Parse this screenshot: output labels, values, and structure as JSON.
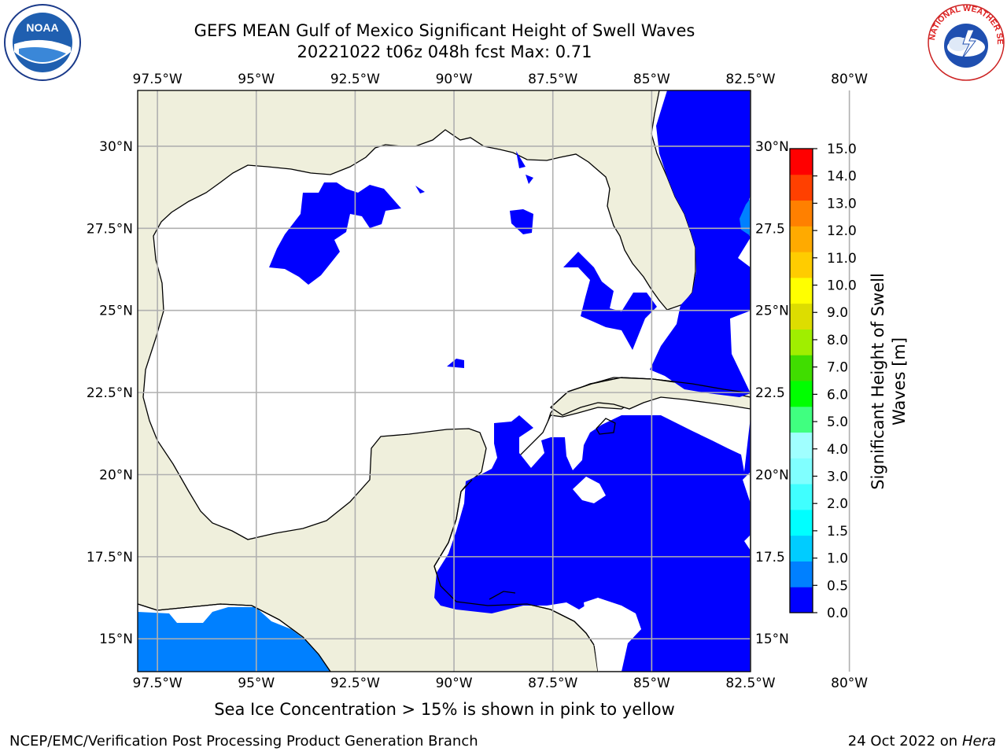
{
  "title": {
    "line1": "GEFS MEAN Gulf of Mexico Significant Height of Swell Waves",
    "line2": "20221022 t06z 048h fcst   Max: 0.71"
  },
  "map": {
    "lon_range": [
      -98.0,
      -82.5
    ],
    "lat_range": [
      14.0,
      31.7
    ],
    "lon_ticks": [
      "97.5°W",
      "95°W",
      "92.5°W",
      "90°W",
      "87.5°W",
      "85°W",
      "82.5°W",
      "80°W"
    ],
    "lat_ticks_left": [
      "30°N",
      "27.5°N",
      "25°N",
      "22.5°N",
      "20°N",
      "17.5°N",
      "15°N"
    ],
    "lat_ticks_right": [
      "30°N",
      "27.5",
      "25°N",
      "22.5",
      "20°N",
      "17.5",
      "15°N"
    ],
    "land_color": "#efefdc",
    "ocean_color": "#ffffff",
    "grid_color": "#b0b0b0"
  },
  "colorbar": {
    "label_line1": "Significant Height of Swell",
    "label_line2": "Waves [m]",
    "ticks": [
      "0.0",
      "0.5",
      "1.0",
      "1.5",
      "2.0",
      "3.0",
      "4.0",
      "5.0",
      "6.0",
      "7.0",
      "8.0",
      "9.0",
      "10.0",
      "11.0",
      "12.0",
      "13.0",
      "14.0",
      "15.0"
    ],
    "colors": [
      "#0000ff",
      "#0080ff",
      "#00ccff",
      "#00ffff",
      "#40ffff",
      "#80ffff",
      "#a0ffff",
      "#40ff80",
      "#00ff00",
      "#40dd00",
      "#a0ee00",
      "#dddd00",
      "#ffff00",
      "#ffcc00",
      "#ffaa00",
      "#ff8000",
      "#ff4000",
      "#ff0000"
    ]
  },
  "caption": "Sea Ice Concentration > 15% is shown in pink to yellow",
  "footer": {
    "left": "NCEP/EMC/Verification Post Processing Product Generation Branch",
    "right_prefix": "24 Oct 2022 on ",
    "right_host": "Hera"
  },
  "logos": {
    "noaa_text": "NOAA",
    "nws_text": "NATIONAL WEATHER SERVICE"
  }
}
